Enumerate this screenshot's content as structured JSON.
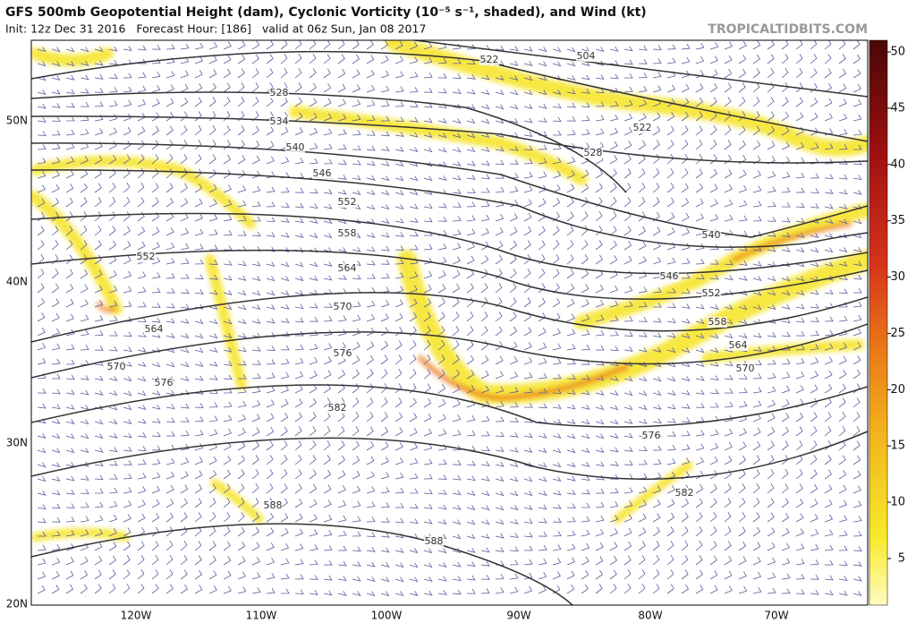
{
  "header": {
    "title": "GFS 500mb Geopotential Height (dam), Cyclonic Vorticity (10⁻⁵ s⁻¹, shaded), and Wind (kt)",
    "subtitle": "Init: 12z Dec 31 2016   Forecast Hour: [186]   valid at 06z Sun, Jan 08 2017",
    "watermark": "TROPICALTIDBITS.COM"
  },
  "map": {
    "lat_labels": [
      "50N",
      "40N",
      "30N",
      "20N"
    ],
    "lon_labels": [
      "120W",
      "110W",
      "100W",
      "90W",
      "80W",
      "70W"
    ],
    "contour_labels": [
      "504",
      "522",
      "522",
      "528",
      "534",
      "540",
      "546",
      "552",
      "558",
      "564",
      "570",
      "576",
      "582",
      "588",
      "588",
      "552",
      "564",
      "570",
      "576",
      "528",
      "540",
      "546",
      "552",
      "558",
      "564",
      "570",
      "576",
      "582"
    ]
  },
  "colorbar": {
    "ticks": [
      5,
      10,
      15,
      20,
      25,
      30,
      35,
      40,
      45,
      50
    ]
  }
}
